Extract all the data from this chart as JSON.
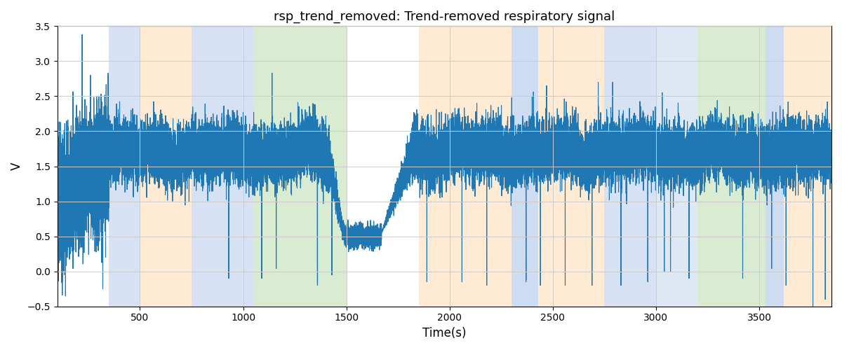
{
  "title": "rsp_trend_removed: Trend-removed respiratory signal",
  "xlabel": "Time(s)",
  "ylabel": "V",
  "ylim": [
    -0.5,
    3.5
  ],
  "xlim": [
    100,
    3850
  ],
  "line_color": "#1f77b4",
  "line_width": 0.8,
  "background_color": "#ffffff",
  "grid_color": "#cccccc",
  "colored_bands": [
    {
      "xmin": 350,
      "xmax": 500,
      "color": "#aec6e8",
      "alpha": 0.5
    },
    {
      "xmin": 500,
      "xmax": 750,
      "color": "#ffd8a8",
      "alpha": 0.5
    },
    {
      "xmin": 750,
      "xmax": 1050,
      "color": "#aec6e8",
      "alpha": 0.5
    },
    {
      "xmin": 1050,
      "xmax": 1500,
      "color": "#b4d9a4",
      "alpha": 0.5
    },
    {
      "xmin": 1850,
      "xmax": 2300,
      "color": "#ffd8a8",
      "alpha": 0.5
    },
    {
      "xmin": 2300,
      "xmax": 2430,
      "color": "#aec6e8",
      "alpha": 0.6
    },
    {
      "xmin": 2430,
      "xmax": 2750,
      "color": "#ffd8a8",
      "alpha": 0.5
    },
    {
      "xmin": 2750,
      "xmax": 3000,
      "color": "#aec6e8",
      "alpha": 0.5
    },
    {
      "xmin": 3000,
      "xmax": 3200,
      "color": "#aec6e8",
      "alpha": 0.4
    },
    {
      "xmin": 3200,
      "xmax": 3530,
      "color": "#b4d9a4",
      "alpha": 0.5
    },
    {
      "xmin": 3530,
      "xmax": 3620,
      "color": "#aec6e8",
      "alpha": 0.6
    },
    {
      "xmin": 3620,
      "xmax": 3850,
      "color": "#ffd8a8",
      "alpha": 0.5
    }
  ],
  "seed": 12345,
  "n_points": 37000,
  "t_start": 100,
  "t_end": 3850,
  "base_level": 1.7,
  "noise_std": 0.18,
  "spike_down_positions": [
    320,
    930,
    1090,
    1160,
    1360,
    1430,
    1530,
    1660,
    1760,
    1890,
    2060,
    2180,
    2370,
    2440,
    2560,
    2690,
    2830,
    2960,
    3040,
    3070,
    3160,
    3420,
    3560,
    3630,
    3760,
    3820
  ],
  "spike_up_positions": [
    220,
    260,
    290,
    360,
    430,
    1140,
    1290,
    1980,
    2020,
    2240,
    2400,
    2470,
    2720,
    2790,
    3030,
    3470,
    3640,
    3830
  ],
  "dip_region_start": 1490,
  "dip_region_end": 1670
}
